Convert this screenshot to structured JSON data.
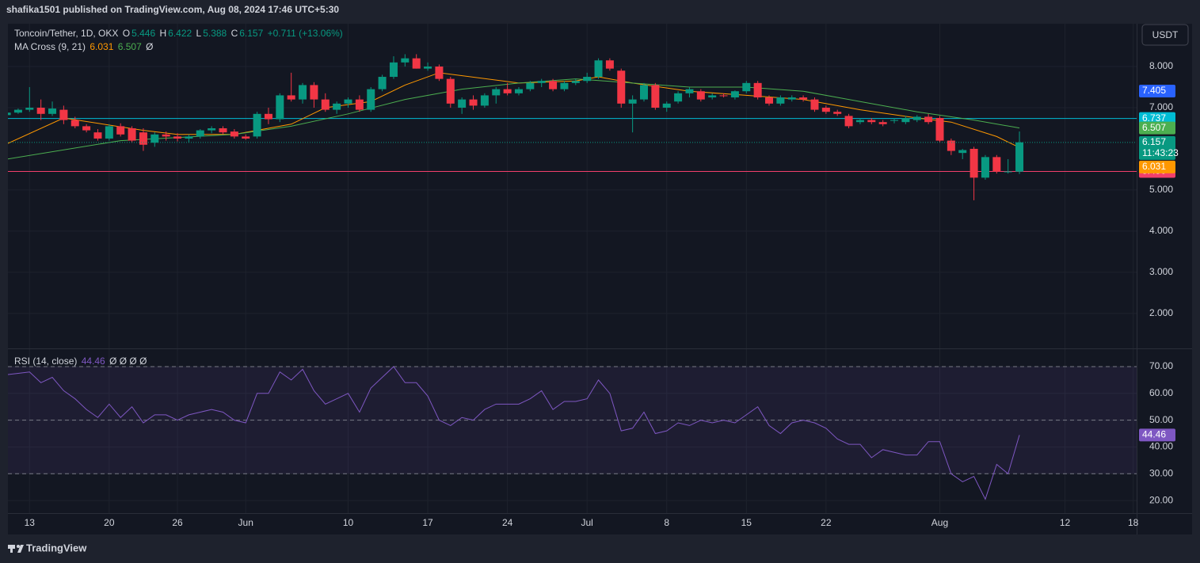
{
  "header": {
    "title": "shafika1501 published on TradingView.com, Aug 08, 2024 17:46 UTC+5:30"
  },
  "footer": {
    "brand": "TradingView"
  },
  "currency_button": "USDT",
  "legend": {
    "symbol": "Toncoin/Tether, 1D, OKX",
    "ohlc_letters": [
      "O",
      "H",
      "L",
      "C"
    ],
    "change": "+0.711 (+13.06%)",
    "ma_name": "MA Cross (9, 21)",
    "ma_extra": "Ø",
    "rsi_name": "RSI (14, close)",
    "rsi_extra": "Ø Ø Ø Ø"
  },
  "chart_data": {
    "type": "candlestick",
    "up_color": "#089981",
    "down_color": "#f23645",
    "candles": [
      [
        6.82,
        6.9,
        6.78,
        6.88
      ],
      [
        6.88,
        6.98,
        6.85,
        6.95
      ],
      [
        6.95,
        7.5,
        6.9,
        7.0
      ],
      [
        7.0,
        7.2,
        6.7,
        6.85
      ],
      [
        6.85,
        7.15,
        6.8,
        6.98
      ],
      [
        6.95,
        7.05,
        6.6,
        6.7
      ],
      [
        6.7,
        6.78,
        6.5,
        6.55
      ],
      [
        6.55,
        6.6,
        6.4,
        6.45
      ],
      [
        6.4,
        6.48,
        6.2,
        6.25
      ],
      [
        6.25,
        6.6,
        6.2,
        6.55
      ],
      [
        6.55,
        6.62,
        6.3,
        6.35
      ],
      [
        6.5,
        6.55,
        6.15,
        6.2
      ],
      [
        6.4,
        6.5,
        5.95,
        6.1
      ],
      [
        6.15,
        6.4,
        6.05,
        6.35
      ],
      [
        6.35,
        6.42,
        6.2,
        6.3
      ],
      [
        6.3,
        6.38,
        6.18,
        6.25
      ],
      [
        6.25,
        6.35,
        6.15,
        6.3
      ],
      [
        6.3,
        6.48,
        6.25,
        6.45
      ],
      [
        6.45,
        6.55,
        6.38,
        6.5
      ],
      [
        6.5,
        6.55,
        6.35,
        6.4
      ],
      [
        6.42,
        6.48,
        6.25,
        6.3
      ],
      [
        6.3,
        6.35,
        6.22,
        6.25
      ],
      [
        6.3,
        6.9,
        6.25,
        6.85
      ],
      [
        6.85,
        7.0,
        6.6,
        6.72
      ],
      [
        6.72,
        7.35,
        6.65,
        7.3
      ],
      [
        7.3,
        7.85,
        7.15,
        7.2
      ],
      [
        7.2,
        7.6,
        7.1,
        7.55
      ],
      [
        7.55,
        7.62,
        7.0,
        7.2
      ],
      [
        7.2,
        7.35,
        6.9,
        6.95
      ],
      [
        6.95,
        7.15,
        6.85,
        7.1
      ],
      [
        7.1,
        7.25,
        7.0,
        7.2
      ],
      [
        7.2,
        7.3,
        6.9,
        6.95
      ],
      [
        6.95,
        7.5,
        6.9,
        7.45
      ],
      [
        7.45,
        7.8,
        7.4,
        7.75
      ],
      [
        7.75,
        8.25,
        7.7,
        8.1
      ],
      [
        8.1,
        8.3,
        8.0,
        8.2
      ],
      [
        8.2,
        8.3,
        7.95,
        7.95
      ],
      [
        7.95,
        8.1,
        7.9,
        8.0
      ],
      [
        8.0,
        8.05,
        7.65,
        7.7
      ],
      [
        7.7,
        7.75,
        7.0,
        7.1
      ],
      [
        7.0,
        7.25,
        6.85,
        7.2
      ],
      [
        7.2,
        7.3,
        6.95,
        7.05
      ],
      [
        7.05,
        7.35,
        7.0,
        7.3
      ],
      [
        7.3,
        7.5,
        7.1,
        7.45
      ],
      [
        7.45,
        7.6,
        7.3,
        7.35
      ],
      [
        7.35,
        7.5,
        7.3,
        7.45
      ],
      [
        7.45,
        7.65,
        7.4,
        7.6
      ],
      [
        7.6,
        7.7,
        7.5,
        7.65
      ],
      [
        7.65,
        7.7,
        7.4,
        7.45
      ],
      [
        7.45,
        7.65,
        7.4,
        7.6
      ],
      [
        7.6,
        7.7,
        7.55,
        7.65
      ],
      [
        7.65,
        7.85,
        7.6,
        7.75
      ],
      [
        7.75,
        8.2,
        7.7,
        8.15
      ],
      [
        8.15,
        8.2,
        7.9,
        7.95
      ],
      [
        7.9,
        7.95,
        7.0,
        7.1
      ],
      [
        7.1,
        7.3,
        6.4,
        7.2
      ],
      [
        7.2,
        7.6,
        7.15,
        7.55
      ],
      [
        7.55,
        7.6,
        6.95,
        7.0
      ],
      [
        7.0,
        7.15,
        6.9,
        7.1
      ],
      [
        7.15,
        7.4,
        7.1,
        7.35
      ],
      [
        7.35,
        7.5,
        7.25,
        7.45
      ],
      [
        7.4,
        7.45,
        7.15,
        7.2
      ],
      [
        7.25,
        7.35,
        7.2,
        7.3
      ],
      [
        7.3,
        7.35,
        7.25,
        7.28
      ],
      [
        7.25,
        7.42,
        7.2,
        7.4
      ],
      [
        7.4,
        7.65,
        7.35,
        7.6
      ],
      [
        7.6,
        7.65,
        7.2,
        7.25
      ],
      [
        7.25,
        7.3,
        7.05,
        7.1
      ],
      [
        7.1,
        7.3,
        7.05,
        7.25
      ],
      [
        7.2,
        7.3,
        7.15,
        7.25
      ],
      [
        7.25,
        7.3,
        7.15,
        7.2
      ],
      [
        7.2,
        7.25,
        6.9,
        6.95
      ],
      [
        7.0,
        7.05,
        6.85,
        6.9
      ],
      [
        6.9,
        6.95,
        6.8,
        6.85
      ],
      [
        6.8,
        6.85,
        6.5,
        6.55
      ],
      [
        6.65,
        6.75,
        6.6,
        6.7
      ],
      [
        6.7,
        6.75,
        6.6,
        6.65
      ],
      [
        6.65,
        6.7,
        6.55,
        6.6
      ],
      [
        6.68,
        6.75,
        6.62,
        6.7
      ],
      [
        6.65,
        6.8,
        6.6,
        6.75
      ],
      [
        6.7,
        6.82,
        6.65,
        6.78
      ],
      [
        6.78,
        6.85,
        6.6,
        6.65
      ],
      [
        6.75,
        6.8,
        6.15,
        6.2
      ],
      [
        6.2,
        6.25,
        5.85,
        5.95
      ],
      [
        5.9,
        6.0,
        5.75,
        5.97
      ],
      [
        6.0,
        6.05,
        4.75,
        5.3
      ],
      [
        5.3,
        5.85,
        5.25,
        5.8
      ],
      [
        5.8,
        5.85,
        5.4,
        5.45
      ],
      [
        5.45,
        5.75,
        5.4,
        5.45
      ],
      [
        5.446,
        6.422,
        5.388,
        6.157
      ]
    ],
    "series": [
      {
        "color": "#ff9800",
        "x": [
          0,
          5,
          12,
          15,
          20,
          25,
          28,
          32,
          35,
          38,
          45,
          50,
          52,
          55,
          60,
          65,
          70,
          75,
          80,
          83,
          87,
          89
        ],
        "values": [
          6.12,
          6.75,
          6.45,
          6.35,
          6.35,
          6.6,
          7.0,
          7.15,
          7.55,
          7.85,
          7.6,
          7.65,
          7.75,
          7.6,
          7.4,
          7.3,
          7.2,
          6.95,
          6.75,
          6.65,
          6.3,
          6.031
        ]
      },
      {
        "color": "#4caf50",
        "x": [
          0,
          10,
          20,
          25,
          30,
          35,
          40,
          45,
          50,
          55,
          60,
          65,
          70,
          75,
          80,
          85,
          89
        ],
        "values": [
          5.75,
          6.2,
          6.35,
          6.55,
          6.85,
          7.2,
          7.45,
          7.6,
          7.7,
          7.6,
          7.5,
          7.5,
          7.4,
          7.15,
          6.9,
          6.7,
          6.507
        ]
      }
    ],
    "hlines": [
      {
        "value": 6.737,
        "label": "6.737",
        "color": "#00bcd4"
      },
      {
        "value": 5.45,
        "label": "5.450",
        "color": "#f23f6b"
      }
    ],
    "price_labels": [
      {
        "value": 7.405,
        "label": "7.405",
        "color": "#2962ff"
      }
    ],
    "countdown": "11:43:23",
    "xlim": [
      0.1,
      99.3
    ],
    "xticks": [
      {
        "value": 2,
        "label": "13"
      },
      {
        "value": 9,
        "label": "20"
      },
      {
        "value": 15,
        "label": "26"
      },
      {
        "value": 21,
        "label": "Jun"
      },
      {
        "value": 30,
        "label": "10"
      },
      {
        "value": 37,
        "label": "17"
      },
      {
        "value": 44,
        "label": "24"
      },
      {
        "value": 51,
        "label": "Jul"
      },
      {
        "value": 58,
        "label": "8"
      },
      {
        "value": 65,
        "label": "15"
      },
      {
        "value": 72,
        "label": "22"
      },
      {
        "value": 82,
        "label": "Aug"
      },
      {
        "value": 93,
        "label": "12"
      },
      {
        "value": 99,
        "label": "18"
      }
    ],
    "ylim": [
      1.15,
      9.04
    ],
    "yticks": [
      {
        "value": 2,
        "label": "2.000"
      },
      {
        "value": 3,
        "label": "3.000"
      },
      {
        "value": 4,
        "label": "4.000"
      },
      {
        "value": 5,
        "label": "5.000"
      },
      {
        "value": 7,
        "label": "7.000"
      },
      {
        "value": 8,
        "label": "8.000"
      }
    ],
    "rsi": {
      "color": "#7e57c2",
      "values": [
        67,
        67.5,
        68,
        64,
        66,
        61,
        58,
        54,
        51,
        56,
        51,
        55,
        49,
        52,
        52,
        50,
        52,
        53,
        54,
        53,
        50,
        49,
        60,
        60,
        68,
        65,
        69,
        61,
        56,
        58,
        60,
        53,
        62,
        66,
        70,
        64,
        64,
        59,
        50,
        48,
        51,
        50,
        54,
        56,
        56,
        56,
        58,
        61,
        54,
        57,
        57,
        58,
        65,
        60,
        46,
        47,
        53,
        45,
        46,
        49,
        48,
        50,
        49,
        50,
        49,
        52,
        55,
        48,
        45,
        49,
        50,
        49,
        47,
        43,
        41,
        41,
        36,
        39,
        38,
        37,
        37,
        42,
        42,
        30,
        27,
        29,
        20.5,
        33.5,
        30,
        44.46
      ],
      "ylim": [
        15.3,
        76.5
      ],
      "yticks": [
        {
          "value": 20,
          "label": "20.00"
        },
        {
          "value": 30,
          "label": "30.00"
        },
        {
          "value": 40,
          "label": "40.00"
        },
        {
          "value": 50,
          "label": "50.00"
        },
        {
          "value": 60,
          "label": "60.00"
        },
        {
          "value": 70,
          "label": "70.00"
        }
      ],
      "levels": [
        70,
        50,
        30
      ]
    }
  }
}
